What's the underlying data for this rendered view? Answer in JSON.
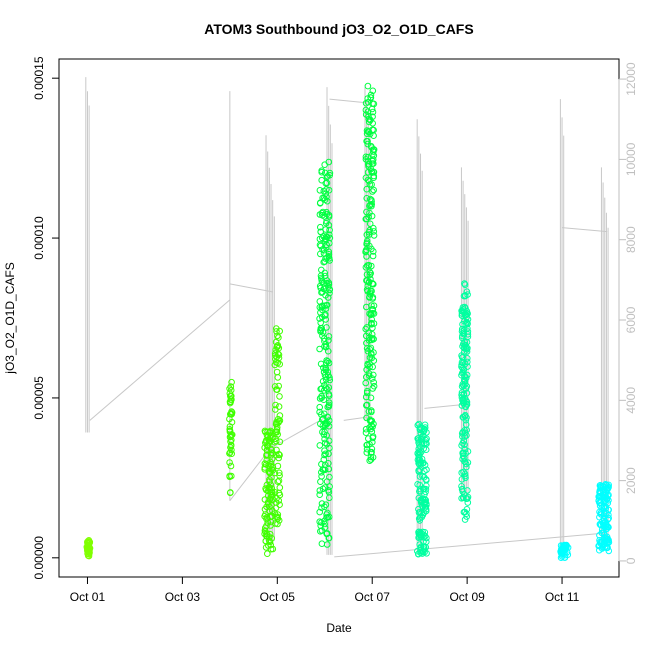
{
  "chart_data": {
    "type": "scatter",
    "title": "ATOM3 Southbound jO3_O2_O1D_CAFS",
    "xlabel": "Date",
    "ylabel": "jO3_O2_O1D_CAFS",
    "x_ticks": [
      "Oct 01",
      "Oct 03",
      "Oct 05",
      "Oct 07",
      "Oct 09",
      "Oct 11"
    ],
    "x_tick_days": [
      1,
      3,
      5,
      7,
      9,
      11
    ],
    "xlim_days": [
      0.4,
      12.2
    ],
    "y_ticks": [
      "0.00000",
      "0.00005",
      "0.00010",
      "0.00015"
    ],
    "y_tick_values": [
      0,
      5e-05,
      0.0001,
      0.00015
    ],
    "ylim": [
      -6e-06,
      0.000156
    ],
    "right_axis": {
      "ticks": [
        "0",
        "2000",
        "4000",
        "6000",
        "8000",
        "10000",
        "12000"
      ],
      "tick_values": [
        0,
        2000,
        4000,
        6000,
        8000,
        10000,
        12000
      ],
      "ylim": [
        -400,
        12500
      ],
      "color": "#bfbfbf"
    },
    "altitude_line": {
      "color": "#c8c8c8",
      "spikes": [
        {
          "day": 1.0,
          "bottom": 3200,
          "top": 12050,
          "n": 3
        },
        {
          "day": 4.0,
          "bottom": 1500,
          "top": 11700,
          "n": 1
        },
        {
          "day": 4.85,
          "bottom": 500,
          "top": 10600,
          "n": 6
        },
        {
          "day": 6.1,
          "bottom": 150,
          "top": 11800,
          "n": 4
        },
        {
          "day": 6.9,
          "bottom": 3500,
          "top": 11800,
          "n": 4
        },
        {
          "day": 8.0,
          "bottom": 300,
          "top": 11000,
          "n": 4
        },
        {
          "day": 8.95,
          "bottom": 1500,
          "top": 9800,
          "n": 5
        },
        {
          "day": 11.0,
          "bottom": 150,
          "top": 11500,
          "n": 3
        },
        {
          "day": 11.9,
          "bottom": 400,
          "top": 9800,
          "n": 5
        }
      ],
      "connectors": [
        [
          [
            1.05,
            3500
          ],
          [
            4.0,
            6500
          ]
        ],
        [
          [
            4.0,
            6900
          ],
          [
            4.9,
            6700
          ]
        ],
        [
          [
            4.0,
            1500
          ],
          [
            4.85,
            2800
          ]
        ],
        [
          [
            4.85,
            2800
          ],
          [
            6.05,
            3600
          ]
        ],
        [
          [
            6.1,
            11500
          ],
          [
            6.95,
            11400
          ]
        ],
        [
          [
            6.2,
            100
          ],
          [
            11.95,
            700
          ]
        ],
        [
          [
            6.4,
            3500
          ],
          [
            7.0,
            3600
          ]
        ],
        [
          [
            8.1,
            3800
          ],
          [
            8.95,
            3900
          ]
        ],
        [
          [
            11.0,
            8300
          ],
          [
            11.95,
            8200
          ]
        ]
      ]
    },
    "series": [
      {
        "color": "#80ff00",
        "clusters": [
          {
            "day": 1.02,
            "spread": 0.07,
            "y0": 5e-07,
            "y1": 5.5e-06,
            "n": 40
          }
        ]
      },
      {
        "color": "#40ff00",
        "clusters": [
          {
            "day": 4.02,
            "spread": 0.06,
            "y0": 2e-05,
            "y1": 5.5e-05,
            "n": 45
          },
          {
            "day": 4.82,
            "spread": 0.18,
            "y0": 1e-06,
            "y1": 4e-05,
            "n": 110
          },
          {
            "day": 5.0,
            "spread": 0.12,
            "y0": 1e-05,
            "y1": 7.3e-05,
            "n": 80
          }
        ]
      },
      {
        "color": "#00ff40",
        "clusters": [
          {
            "day": 6.0,
            "spread": 0.22,
            "y0": 4e-06,
            "y1": 0.000124,
            "n": 240
          },
          {
            "day": 6.95,
            "spread": 0.18,
            "y0": 3e-05,
            "y1": 0.000148,
            "n": 220
          }
        ]
      },
      {
        "color": "#00ffa0",
        "clusters": [
          {
            "day": 8.05,
            "spread": 0.2,
            "y0": 1e-06,
            "y1": 4.2e-05,
            "n": 140
          },
          {
            "day": 8.95,
            "spread": 0.14,
            "y0": 1e-05,
            "y1": 8.6e-05,
            "n": 160
          }
        ]
      },
      {
        "color": "#00ffff",
        "clusters": [
          {
            "day": 11.05,
            "spread": 0.16,
            "y0": 0.0,
            "y1": 4e-06,
            "n": 40
          },
          {
            "day": 11.88,
            "spread": 0.22,
            "y0": 2e-06,
            "y1": 2.3e-05,
            "n": 120
          }
        ]
      }
    ],
    "grid": false
  }
}
